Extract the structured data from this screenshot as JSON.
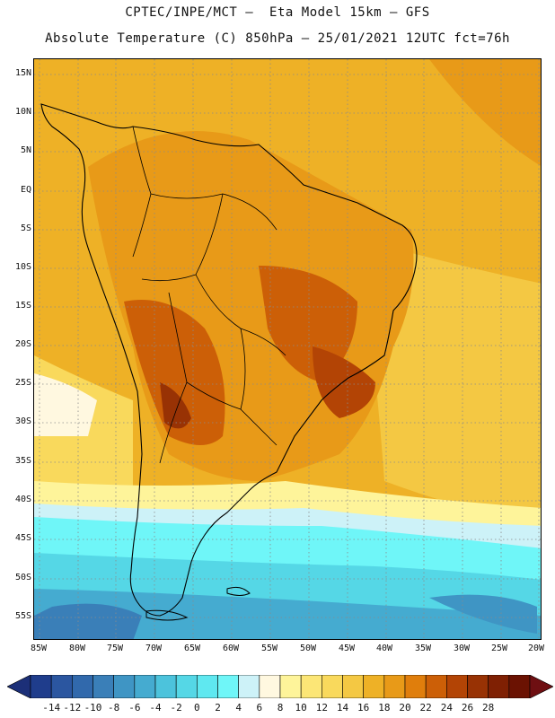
{
  "header": {
    "line1": "CPTEC/INPE/MCT –  Eta Model 15km – GFS",
    "line2": "Absolute Temperature (C) 850hPa – 25/01/2021 12UTC fct=76h"
  },
  "map": {
    "lat_labels": [
      "15N",
      "10N",
      "5N",
      "EQ",
      "5S",
      "10S",
      "15S",
      "20S",
      "25S",
      "30S",
      "35S",
      "40S",
      "45S",
      "50S",
      "55S"
    ],
    "lon_labels": [
      "85W",
      "80W",
      "75W",
      "70W",
      "65W",
      "60W",
      "55W",
      "50W",
      "45W",
      "40W",
      "35W",
      "30W",
      "25W",
      "20W"
    ],
    "grid": "dotted"
  },
  "colorbar": {
    "tick_labels": [
      "-14",
      "-12",
      "-10",
      "-8",
      "-6",
      "-4",
      "-2",
      "0",
      "2",
      "4",
      "6",
      "8",
      "10",
      "12",
      "14",
      "16",
      "18",
      "20",
      "22",
      "24",
      "26",
      "28"
    ],
    "colors": [
      "#1f3d8c",
      "#2b56a0",
      "#3169ac",
      "#3a7fb8",
      "#3f95c4",
      "#45abd0",
      "#4cc3dc",
      "#55d7e6",
      "#5fe8f0",
      "#6ff6f8",
      "#cdf2f8",
      "#fff8e0",
      "#fef49a",
      "#fce676",
      "#f9d95c",
      "#f4c843",
      "#eeb126",
      "#e89a18",
      "#e07e0c",
      "#cc5f07",
      "#b34405",
      "#983204",
      "#7f2003",
      "#6b1202"
    ],
    "ends": {
      "low": "#1c2f78",
      "high": "#6e0f12"
    }
  }
}
